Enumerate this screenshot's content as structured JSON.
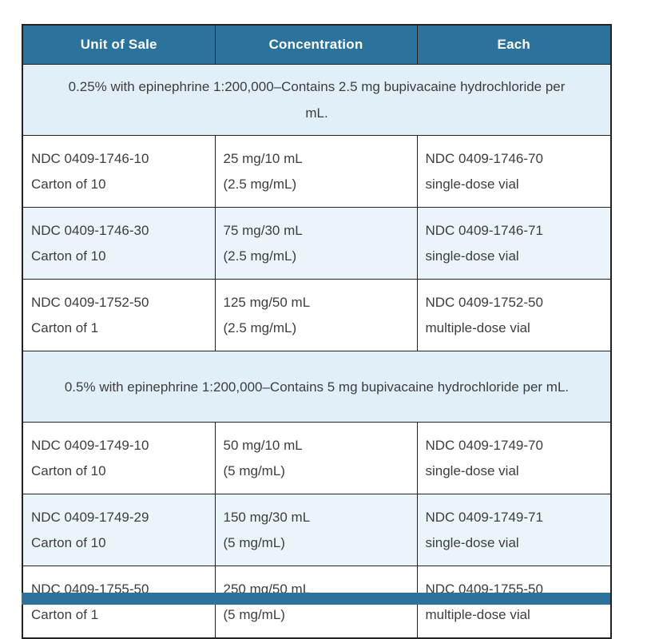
{
  "table": {
    "columns": [
      {
        "label": "Unit of Sale"
      },
      {
        "label": "Concentration"
      },
      {
        "label": "Each"
      }
    ],
    "groups": [
      {
        "heading": "0.25% with epinephrine 1:200,000–Contains 2.5 mg bupivacaine hydrochloride per mL.",
        "rows": [
          {
            "unit": [
              "NDC 0409-1746-10",
              "Carton of 10"
            ],
            "concentration": [
              "25 mg/10 mL",
              "(2.5 mg/mL)"
            ],
            "each": [
              "NDC 0409-1746-70",
              "single-dose vial"
            ]
          },
          {
            "unit": [
              "NDC 0409-1746-30",
              "Carton of 10"
            ],
            "concentration": [
              "75 mg/30 mL",
              "(2.5 mg/mL)"
            ],
            "each": [
              "NDC 0409-1746-71",
              "single-dose vial"
            ]
          },
          {
            "unit": [
              "NDC 0409-1752-50",
              "Carton of 1"
            ],
            "concentration": [
              "125 mg/50 mL",
              "(2.5 mg/mL)"
            ],
            "each": [
              "NDC 0409-1752-50",
              "multiple-dose vial"
            ]
          }
        ]
      },
      {
        "heading": "0.5% with epinephrine 1:200,000–Contains 5 mg bupivacaine hydrochloride per mL.",
        "rows": [
          {
            "unit": [
              "NDC 0409-1749-10",
              "Carton of 10"
            ],
            "concentration": [
              "50 mg/10 mL",
              "(5 mg/mL)"
            ],
            "each": [
              "NDC 0409-1749-70",
              "single-dose vial"
            ]
          },
          {
            "unit": [
              "NDC 0409-1749-29",
              "Carton of 10"
            ],
            "concentration": [
              "150 mg/30 mL",
              "(5 mg/mL)"
            ],
            "each": [
              "NDC 0409-1749-71",
              "single-dose vial"
            ]
          },
          {
            "unit": [
              "NDC 0409-1755-50",
              "Carton of 1"
            ],
            "concentration": [
              "250 mg/50 mL",
              "(5 mg/mL)"
            ],
            "each": [
              "NDC 0409-1755-50",
              "multiple-dose vial"
            ]
          }
        ]
      }
    ]
  },
  "colors": {
    "header_bg": "#2b739c",
    "header_text": "#ffffff",
    "group_row_bg": "#e1f0f8",
    "row_alt_bg": "#e9f5fb",
    "row_bg": "#ffffff",
    "border": "#222222",
    "body_text": "#3d3d3d"
  }
}
